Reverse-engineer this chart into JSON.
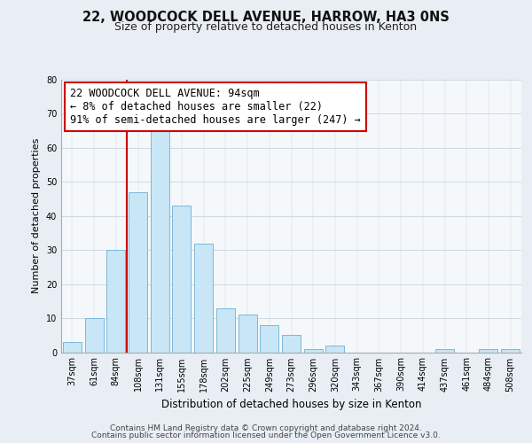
{
  "title": "22, WOODCOCK DELL AVENUE, HARROW, HA3 0NS",
  "subtitle": "Size of property relative to detached houses in Kenton",
  "xlabel": "Distribution of detached houses by size in Kenton",
  "ylabel": "Number of detached properties",
  "categories": [
    "37sqm",
    "61sqm",
    "84sqm",
    "108sqm",
    "131sqm",
    "155sqm",
    "178sqm",
    "202sqm",
    "225sqm",
    "249sqm",
    "273sqm",
    "296sqm",
    "320sqm",
    "343sqm",
    "367sqm",
    "390sqm",
    "414sqm",
    "437sqm",
    "461sqm",
    "484sqm",
    "508sqm"
  ],
  "values": [
    3,
    10,
    30,
    47,
    65,
    43,
    32,
    13,
    11,
    8,
    5,
    1,
    2,
    0,
    0,
    0,
    0,
    1,
    0,
    1,
    1
  ],
  "bar_color": "#c8e6f5",
  "bar_edge_color": "#7ab8d9",
  "vline_color": "#cc0000",
  "annotation_line1": "22 WOODCOCK DELL AVENUE: 94sqm",
  "annotation_line2": "← 8% of detached houses are smaller (22)",
  "annotation_line3": "91% of semi-detached houses are larger (247) →",
  "annotation_box_color": "white",
  "annotation_box_edge": "#cc0000",
  "ylim": [
    0,
    80
  ],
  "yticks": [
    0,
    10,
    20,
    30,
    40,
    50,
    60,
    70,
    80
  ],
  "footer_line1": "Contains HM Land Registry data © Crown copyright and database right 2024.",
  "footer_line2": "Contains public sector information licensed under the Open Government Licence v3.0.",
  "background_color": "#e8eef4",
  "plot_background_color": "#f5f8fb",
  "grid_color": "#c8d4de",
  "title_fontsize": 10.5,
  "subtitle_fontsize": 9,
  "xlabel_fontsize": 8.5,
  "ylabel_fontsize": 8,
  "tick_fontsize": 7,
  "annotation_fontsize": 8.5,
  "footer_fontsize": 6.5
}
